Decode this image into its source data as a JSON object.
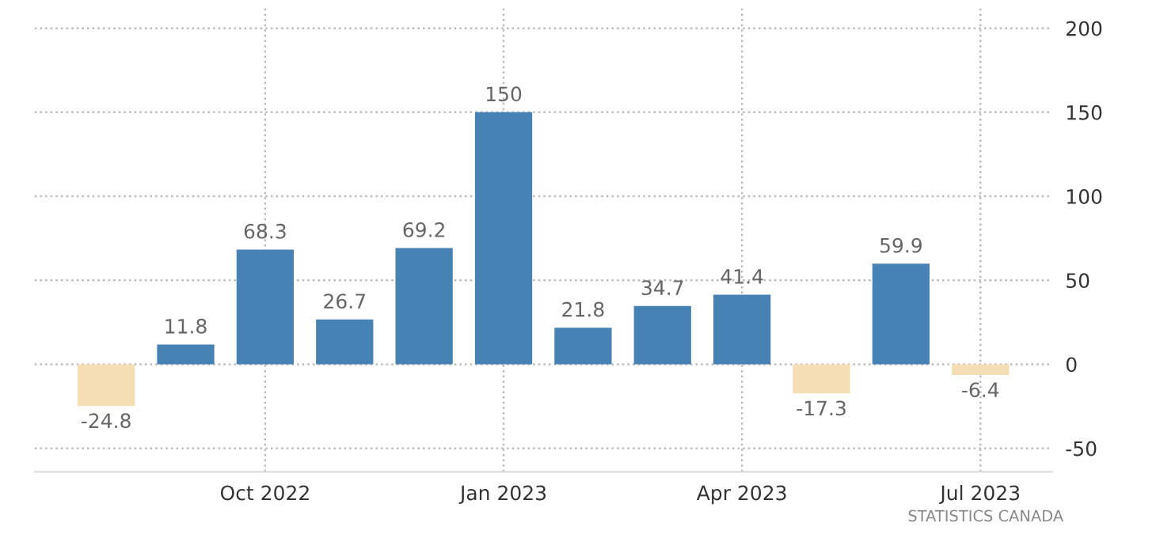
{
  "chart_data": {
    "type": "bar",
    "categories": [
      null,
      null,
      "Oct 2022",
      null,
      null,
      "Jan 2023",
      null,
      null,
      "Apr 2023",
      null,
      null,
      "Jul 2023"
    ],
    "values": [
      -24.8,
      11.8,
      68.3,
      26.7,
      69.2,
      150,
      21.8,
      34.7,
      41.4,
      -17.3,
      59.9,
      -6.4
    ],
    "colors": [
      "#f5deb3",
      "#4682b4",
      "#4682b4",
      "#4682b4",
      "#4682b4",
      "#4682b4",
      "#4682b4",
      "#4682b4",
      "#4682b4",
      "#f5deb3",
      "#4682b4",
      "#f5deb3"
    ],
    "ylim": [
      -64,
      212
    ],
    "yticks": [
      -50,
      0,
      50,
      100,
      150,
      200
    ],
    "grid": true,
    "data_labels": true,
    "annotations": [
      "STATISTICS CANADA"
    ]
  }
}
